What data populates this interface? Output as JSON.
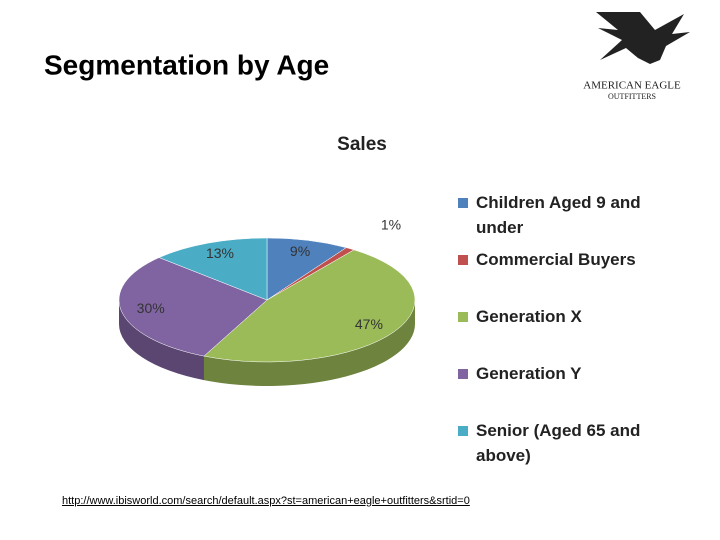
{
  "slide_title": "Segmentation by Age",
  "logo": {
    "line1": "AMERICAN EAGLE",
    "line2": "OUTFITTERS"
  },
  "source_url": "http://www.ibisworld.com/search/default.aspx?st=american+eagle+outfitters&srtid=0",
  "chart_data": {
    "type": "pie",
    "title": "Sales",
    "categories": [
      "Children Aged 9 and under",
      "Commercial Buyers",
      "Generation X",
      "Generation Y",
      "Senior (Aged 65 and above)"
    ],
    "values": [
      9,
      1,
      47,
      30,
      13
    ],
    "value_labels": [
      "9%",
      "1%",
      "47%",
      "30%",
      "13%"
    ],
    "colors": [
      "#4f81bd",
      "#c0504d",
      "#9bbb59",
      "#8064a2",
      "#4bacc6"
    ],
    "legend": "right"
  }
}
